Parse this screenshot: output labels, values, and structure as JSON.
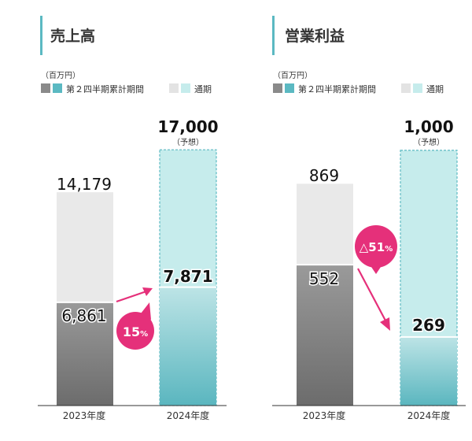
{
  "unit": "（百万円）",
  "legend": {
    "cumulative": "第２四半期累計期間",
    "full_year": "通期"
  },
  "colors": {
    "accent_bar": "#5bb9c2",
    "prev_full": "#e9e9e9",
    "prev_cum_top": "#9a9a9a",
    "prev_cum_bottom": "#6c6c6c",
    "cur_full": "#c6ecec",
    "cur_full_border": "#5bb9c2",
    "cur_cum_top": "#bde4e6",
    "cur_cum_bottom": "#5ab6bf",
    "bubble": "#e5307a"
  },
  "chart_data": [
    {
      "type": "bar",
      "title": "売上高",
      "categories": [
        "2023年度",
        "2024年度"
      ],
      "series": [
        {
          "name": "第２四半期累計期間",
          "values": [
            6861,
            7871
          ]
        },
        {
          "name": "通期",
          "values": [
            14179,
            17000
          ]
        }
      ],
      "value_labels": {
        "cumulative": [
          "6,861",
          "7,871"
        ],
        "full_year": [
          "14,179",
          "17,000"
        ]
      },
      "forecast_note": "（予想）",
      "change_label": {
        "value": "15",
        "unit": "%"
      },
      "ylim": [
        0,
        19000
      ],
      "grid": false
    },
    {
      "type": "bar",
      "title": "営業利益",
      "categories": [
        "2023年度",
        "2024年度"
      ],
      "series": [
        {
          "name": "第２四半期累計期間",
          "values": [
            552,
            269
          ]
        },
        {
          "name": "通期",
          "values": [
            869,
            1000
          ]
        }
      ],
      "value_labels": {
        "cumulative": [
          "552",
          "269"
        ],
        "full_year": [
          "869",
          "1,000"
        ]
      },
      "forecast_note": "（予想）",
      "change_label": {
        "value": "△51",
        "unit": "%"
      },
      "ylim": [
        0,
        1120
      ],
      "grid": false
    }
  ]
}
